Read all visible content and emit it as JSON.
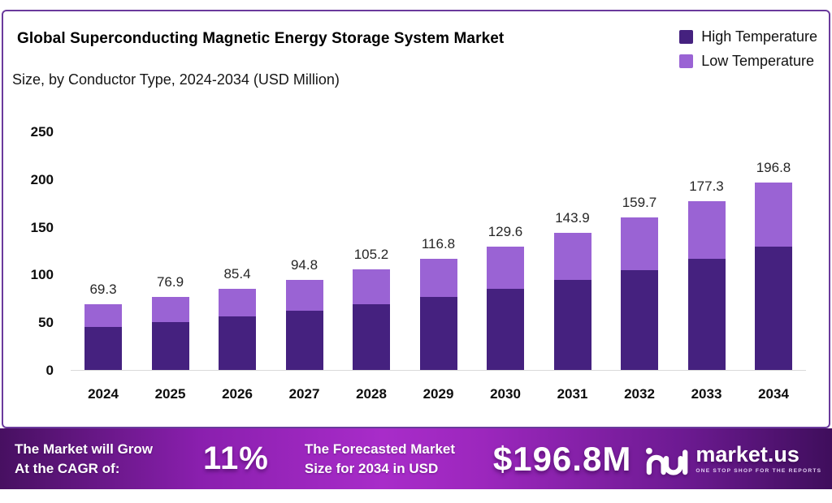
{
  "header": {
    "title": "Global Superconducting Magnetic Energy Storage System Market",
    "subtitle": "Size, by Conductor Type, 2024-2034 (USD Million)"
  },
  "legend": [
    {
      "label": "High Temperature",
      "color": "#45217f"
    },
    {
      "label": "Low Temperature",
      "color": "#9a63d4"
    }
  ],
  "chart_data": {
    "type": "bar",
    "stacked": true,
    "title": "Global Superconducting Magnetic Energy Storage System Market Size, by Conductor Type, 2024-2034 (USD Million)",
    "categories": [
      "2024",
      "2025",
      "2026",
      "2027",
      "2028",
      "2029",
      "2030",
      "2031",
      "2032",
      "2033",
      "2034"
    ],
    "series": [
      {
        "name": "High Temperature",
        "color": "#45217f",
        "values": [
          45.4,
          50.4,
          55.9,
          62.1,
          68.9,
          76.5,
          84.9,
          94.3,
          104.6,
          116.1,
          128.9
        ]
      },
      {
        "name": "Low Temperature",
        "color": "#9a63d4",
        "values": [
          23.9,
          26.5,
          29.5,
          32.7,
          36.3,
          40.3,
          44.7,
          49.6,
          55.1,
          61.2,
          67.9
        ]
      }
    ],
    "totals": [
      69.3,
      76.9,
      85.4,
      94.8,
      105.2,
      116.8,
      129.6,
      143.9,
      159.7,
      177.3,
      196.8
    ],
    "total_labels": [
      "69.3",
      "76.9",
      "85.4",
      "94.8",
      "105.2",
      "116.8",
      "129.6",
      "143.9",
      "159.7",
      "177.3",
      "196.8"
    ],
    "xlabel": "",
    "ylabel": "",
    "ylim": [
      0,
      250
    ],
    "yticks": [
      0,
      50,
      100,
      150,
      200,
      250
    ],
    "grid": false,
    "legend_position": "top-right"
  },
  "footer": {
    "cagr_label_line1": "The Market will Grow",
    "cagr_label_line2": "At the CAGR of:",
    "cagr_value": "11%",
    "forecast_label_line1": "The Forecasted Market",
    "forecast_label_line2": "Size for 2034 in USD",
    "forecast_value": "$196.8M",
    "logo_text": "market.us",
    "logo_tagline": "ONE STOP SHOP FOR THE REPORTS"
  },
  "colors": {
    "high_temperature": "#45217f",
    "low_temperature": "#9a63d4",
    "card_border": "#6a3a9c",
    "banner_center": "#a82cc9",
    "banner_edge": "#471061",
    "baseline": "#d9d9d9",
    "text": "#0d0d0d"
  }
}
